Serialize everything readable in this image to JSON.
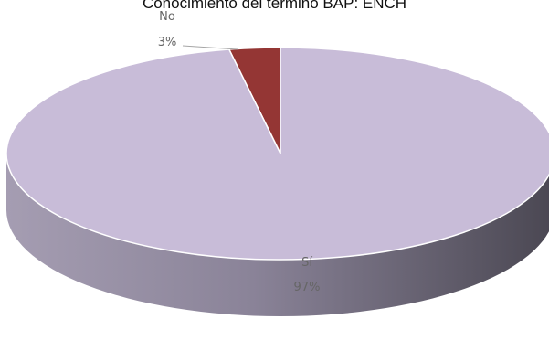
{
  "chart_data": {
    "type": "pie",
    "title": "Conocimiento del término BAP: ENCH",
    "slices": [
      {
        "label": "Sí",
        "value": 97,
        "value_label": "97%",
        "color": "#c8bcd8"
      },
      {
        "label": "No",
        "value": 3,
        "value_label": "3%",
        "color": "#943634"
      }
    ],
    "style": "3d"
  }
}
